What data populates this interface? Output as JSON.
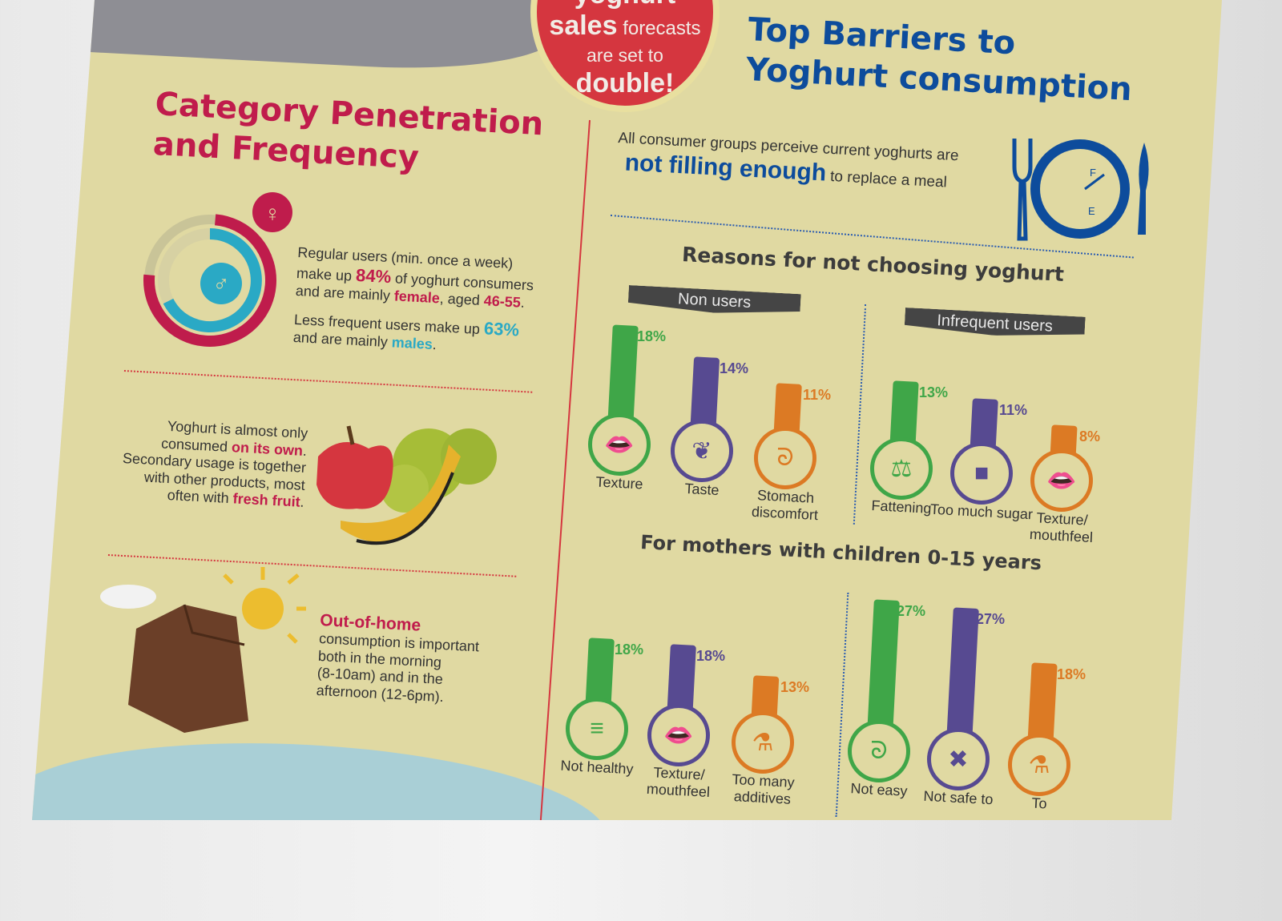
{
  "badge": {
    "word1": "yoghurt",
    "word2": "sales",
    "text1": "forecasts",
    "text2": "are set to",
    "text3": "double!"
  },
  "left": {
    "title_line1": "Category Penetration",
    "title_line2": "and Frequency",
    "female_icon": "female-symbol-icon",
    "male_icon": "male-symbol-icon",
    "regular": {
      "text1": "Regular users (min. once a week)",
      "text2a": "make up",
      "pct": "84%",
      "text2b": "of yoghurt consumers",
      "text3a": "and are mainly",
      "female": "female",
      "text3b": ", aged",
      "age": "46-55",
      "text3c": "."
    },
    "less": {
      "text1": "Less frequent users make up",
      "pct": "63%",
      "text2a": "and are mainly",
      "males": "males",
      "text2b": "."
    },
    "donut": {
      "female_share": 0.84,
      "male_share": 0.63
    },
    "own": {
      "l1": "Yoghurt is almost only",
      "l2a": "consumed",
      "own": "on its own",
      "l2b": ".",
      "l3": "Secondary usage is together",
      "l4": "with other products, most",
      "l5a": "often with",
      "fruit": "fresh fruit",
      "l5b": "."
    },
    "ooh": {
      "title": "Out-of-home",
      "l1": "consumption is important",
      "l2": "both in the morning",
      "l3": "(8-10am) and in the",
      "l4": "afternoon (12-6pm)."
    }
  },
  "right": {
    "title_line1": "Top Barriers to",
    "title_line2": "Yoghurt consumption",
    "intro1": "All consumer groups perceive current yoghurts are",
    "intro_bold": "not filling enough",
    "intro2": "to replace a meal",
    "gauge": {
      "f": "F",
      "e": "E"
    },
    "reasons_title": "Reasons for not choosing yoghurt",
    "mothers_title": "For mothers with children 0-15 years",
    "groups": [
      {
        "tag": "Non users",
        "bars": [
          {
            "label": "Texture",
            "value": 18,
            "pct": "18%",
            "icon": "lips-icon"
          },
          {
            "label": "Taste",
            "value": 14,
            "pct": "14%",
            "icon": "leaf-icon"
          },
          {
            "label": "Stomach discomfort",
            "value": 11,
            "pct": "11%",
            "icon": "stomach-icon"
          }
        ]
      },
      {
        "tag": "Infrequent users",
        "bars": [
          {
            "label": "Fattening",
            "value": 13,
            "pct": "13%",
            "icon": "scale-icon"
          },
          {
            "label": "Too much sugar",
            "value": 11,
            "pct": "11%",
            "icon": "sugar-cube-icon"
          },
          {
            "label": "Texture/ mouthfeel",
            "value": 8,
            "pct": "8%",
            "icon": "lips-icon"
          }
        ]
      },
      {
        "tag": "",
        "bars": [
          {
            "label": "Not healthy",
            "value": 18,
            "pct": "18%",
            "icon": "burger-icon"
          },
          {
            "label": "Texture/ mouthfeel",
            "value": 18,
            "pct": "18%",
            "icon": "lips-icon"
          },
          {
            "label": "Too many additives",
            "value": 13,
            "pct": "13%",
            "icon": "flask-icon"
          }
        ]
      },
      {
        "tag": "",
        "bars": [
          {
            "label": "Not easy",
            "value": 27,
            "pct": "27%",
            "icon": "stomach-icon"
          },
          {
            "label": "Not safe to",
            "value": 27,
            "pct": "27%",
            "icon": "cross-icon"
          },
          {
            "label": "To",
            "value": 18,
            "pct": "18%",
            "icon": "flask-icon"
          }
        ]
      }
    ],
    "colors": [
      "#3fa648",
      "#574a91",
      "#dc7a24"
    ]
  }
}
